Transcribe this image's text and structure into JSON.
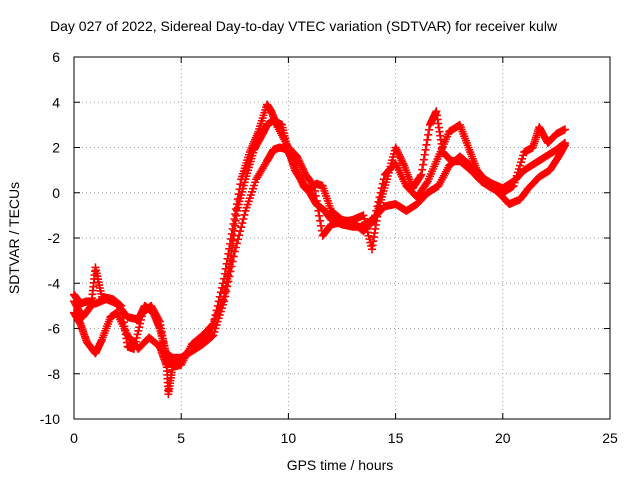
{
  "chart_data": {
    "type": "scatter",
    "title": "Day 027 of 2022, Sidereal Day-to-day VTEC variation (SDTVAR) for receiver kulw",
    "xlabel": "GPS time / hours",
    "ylabel": "SDTVAR / TECUs",
    "xlim": [
      0,
      25
    ],
    "ylim": [
      -10,
      6
    ],
    "xticks": [
      0,
      5,
      10,
      15,
      20,
      25
    ],
    "yticks": [
      -10,
      -8,
      -6,
      -4,
      -2,
      0,
      2,
      4,
      6
    ],
    "xtick_labels": [
      "0",
      "5",
      "10",
      "15",
      "20",
      "25"
    ],
    "ytick_labels": [
      "-10",
      "-8",
      "-6",
      "-4",
      "-2",
      "0",
      "2",
      "4",
      "6"
    ],
    "grid": true,
    "marker": "+",
    "marker_color": "#ff0000",
    "series": [
      {
        "points": [
          [
            0.0,
            -4.5
          ],
          [
            0.3,
            -4.9
          ],
          [
            0.6,
            -4.8
          ],
          [
            1.0,
            -4.9
          ],
          [
            1.5,
            -4.7
          ],
          [
            2.0,
            -4.9
          ],
          [
            2.5,
            -5.5
          ],
          [
            3.0,
            -5.6
          ],
          [
            3.3,
            -5.0
          ],
          [
            3.7,
            -5.3
          ],
          [
            4.0,
            -6.0
          ],
          [
            4.3,
            -7.1
          ],
          [
            4.6,
            -7.3
          ],
          [
            5.0,
            -7.3
          ],
          [
            5.5,
            -6.9
          ],
          [
            6.0,
            -6.5
          ],
          [
            6.5,
            -5.8
          ],
          [
            7.0,
            -4.6
          ],
          [
            7.3,
            -3.0
          ],
          [
            7.6,
            -0.8
          ],
          [
            8.0,
            0.6
          ],
          [
            8.4,
            1.9
          ],
          [
            8.8,
            2.6
          ],
          [
            9.0,
            3.0
          ],
          [
            9.3,
            3.2
          ],
          [
            9.7,
            3.0
          ],
          [
            10.0,
            1.8
          ],
          [
            10.3,
            1.2
          ],
          [
            10.7,
            0.3
          ],
          [
            11.0,
            0.0
          ],
          [
            11.3,
            -0.5
          ],
          [
            11.7,
            -0.8
          ],
          [
            12.0,
            -1.2
          ],
          [
            12.5,
            -1.4
          ],
          [
            13.0,
            -1.5
          ],
          [
            13.5,
            -1.5
          ],
          [
            14.0,
            -1.1
          ],
          [
            14.5,
            -0.6
          ],
          [
            15.0,
            -0.5
          ],
          [
            15.5,
            -0.8
          ],
          [
            16.0,
            -0.5
          ],
          [
            16.5,
            0.0
          ],
          [
            17.0,
            0.3
          ],
          [
            17.5,
            1.2
          ],
          [
            18.0,
            1.6
          ],
          [
            18.5,
            1.2
          ],
          [
            19.0,
            0.7
          ],
          [
            19.5,
            0.4
          ],
          [
            20.0,
            0.2
          ],
          [
            20.5,
            0.5
          ],
          [
            21.0,
            1.0
          ],
          [
            21.5,
            1.3
          ],
          [
            22.0,
            1.6
          ],
          [
            22.5,
            1.9
          ],
          [
            22.9,
            2.2
          ]
        ]
      },
      {
        "points": [
          [
            0.0,
            -5.3
          ],
          [
            0.3,
            -5.8
          ],
          [
            0.6,
            -6.6
          ],
          [
            1.0,
            -7.1
          ],
          [
            1.3,
            -6.5
          ],
          [
            1.7,
            -5.5
          ],
          [
            2.0,
            -5.3
          ],
          [
            2.5,
            -6.3
          ],
          [
            3.0,
            -6.9
          ],
          [
            3.5,
            -6.4
          ],
          [
            4.0,
            -6.8
          ],
          [
            4.3,
            -7.6
          ],
          [
            4.7,
            -7.5
          ],
          [
            5.0,
            -7.3
          ],
          [
            5.5,
            -7.0
          ],
          [
            6.0,
            -6.7
          ],
          [
            6.5,
            -6.3
          ],
          [
            7.0,
            -4.8
          ],
          [
            7.5,
            -2.6
          ],
          [
            8.0,
            -0.8
          ],
          [
            8.5,
            0.6
          ],
          [
            9.0,
            1.4
          ],
          [
            9.3,
            1.9
          ],
          [
            9.6,
            2.0
          ],
          [
            10.0,
            1.9
          ],
          [
            10.3,
            1.0
          ],
          [
            10.7,
            0.4
          ],
          [
            11.0,
            0.1
          ],
          [
            11.3,
            0.4
          ],
          [
            11.6,
            0.3
          ],
          [
            12.0,
            -0.8
          ],
          [
            12.5,
            -1.2
          ],
          [
            13.0,
            -1.3
          ],
          [
            13.5,
            -1.7
          ],
          [
            14.0,
            -1.2
          ],
          [
            14.5,
            0.8
          ],
          [
            15.0,
            1.3
          ],
          [
            15.5,
            0.3
          ],
          [
            16.0,
            -0.2
          ],
          [
            16.5,
            0.5
          ],
          [
            17.0,
            1.6
          ],
          [
            17.5,
            2.7
          ],
          [
            18.0,
            3.0
          ],
          [
            18.4,
            2.0
          ],
          [
            18.8,
            1.0
          ],
          [
            19.3,
            0.4
          ],
          [
            19.8,
            0.0
          ],
          [
            20.3,
            -0.5
          ],
          [
            20.8,
            -0.3
          ],
          [
            21.2,
            0.2
          ],
          [
            21.7,
            0.7
          ],
          [
            22.2,
            1.0
          ],
          [
            22.6,
            1.6
          ],
          [
            22.9,
            2.1
          ]
        ]
      },
      {
        "points": [
          [
            0.0,
            -4.8
          ],
          [
            0.4,
            -5.5
          ],
          [
            0.8,
            -5.0
          ],
          [
            1.0,
            -3.3
          ],
          [
            1.3,
            -4.6
          ],
          [
            1.8,
            -4.7
          ],
          [
            2.2,
            -5.0
          ],
          [
            2.5,
            -6.8
          ],
          [
            2.8,
            -6.9
          ],
          [
            3.2,
            -5.3
          ],
          [
            3.6,
            -5.0
          ],
          [
            4.0,
            -5.7
          ],
          [
            4.3,
            -7.2
          ],
          [
            4.4,
            -8.9
          ],
          [
            4.6,
            -7.7
          ],
          [
            5.0,
            -7.6
          ],
          [
            5.5,
            -6.7
          ],
          [
            6.0,
            -6.3
          ],
          [
            6.5,
            -5.8
          ],
          [
            7.0,
            -3.8
          ],
          [
            7.4,
            -1.6
          ],
          [
            7.8,
            0.6
          ],
          [
            8.2,
            1.8
          ],
          [
            8.6,
            2.7
          ],
          [
            9.0,
            3.9
          ],
          [
            9.2,
            3.6
          ],
          [
            9.5,
            2.9
          ],
          [
            10.0,
            2.0
          ],
          [
            10.4,
            1.6
          ],
          [
            10.8,
            0.8
          ],
          [
            11.2,
            0.3
          ],
          [
            11.6,
            -1.9
          ],
          [
            12.0,
            -1.4
          ],
          [
            12.5,
            -1.3
          ],
          [
            13.0,
            -1.2
          ],
          [
            13.5,
            -1.0
          ],
          [
            13.9,
            -2.5
          ],
          [
            14.2,
            -0.7
          ],
          [
            14.6,
            0.6
          ],
          [
            15.0,
            2.0
          ],
          [
            15.4,
            1.2
          ],
          [
            15.8,
            0.2
          ],
          [
            16.2,
            0.8
          ],
          [
            16.6,
            3.0
          ],
          [
            16.9,
            3.6
          ],
          [
            17.2,
            1.8
          ],
          [
            17.6,
            1.4
          ],
          [
            18.0,
            1.4
          ],
          [
            18.5,
            1.0
          ],
          [
            19.0,
            0.5
          ],
          [
            19.5,
            0.2
          ],
          [
            20.0,
            0.0
          ],
          [
            20.5,
            0.3
          ],
          [
            21.0,
            1.8
          ],
          [
            21.4,
            2.0
          ],
          [
            21.7,
            2.9
          ],
          [
            22.1,
            2.2
          ],
          [
            22.5,
            2.6
          ],
          [
            22.9,
            2.8
          ]
        ]
      }
    ]
  }
}
